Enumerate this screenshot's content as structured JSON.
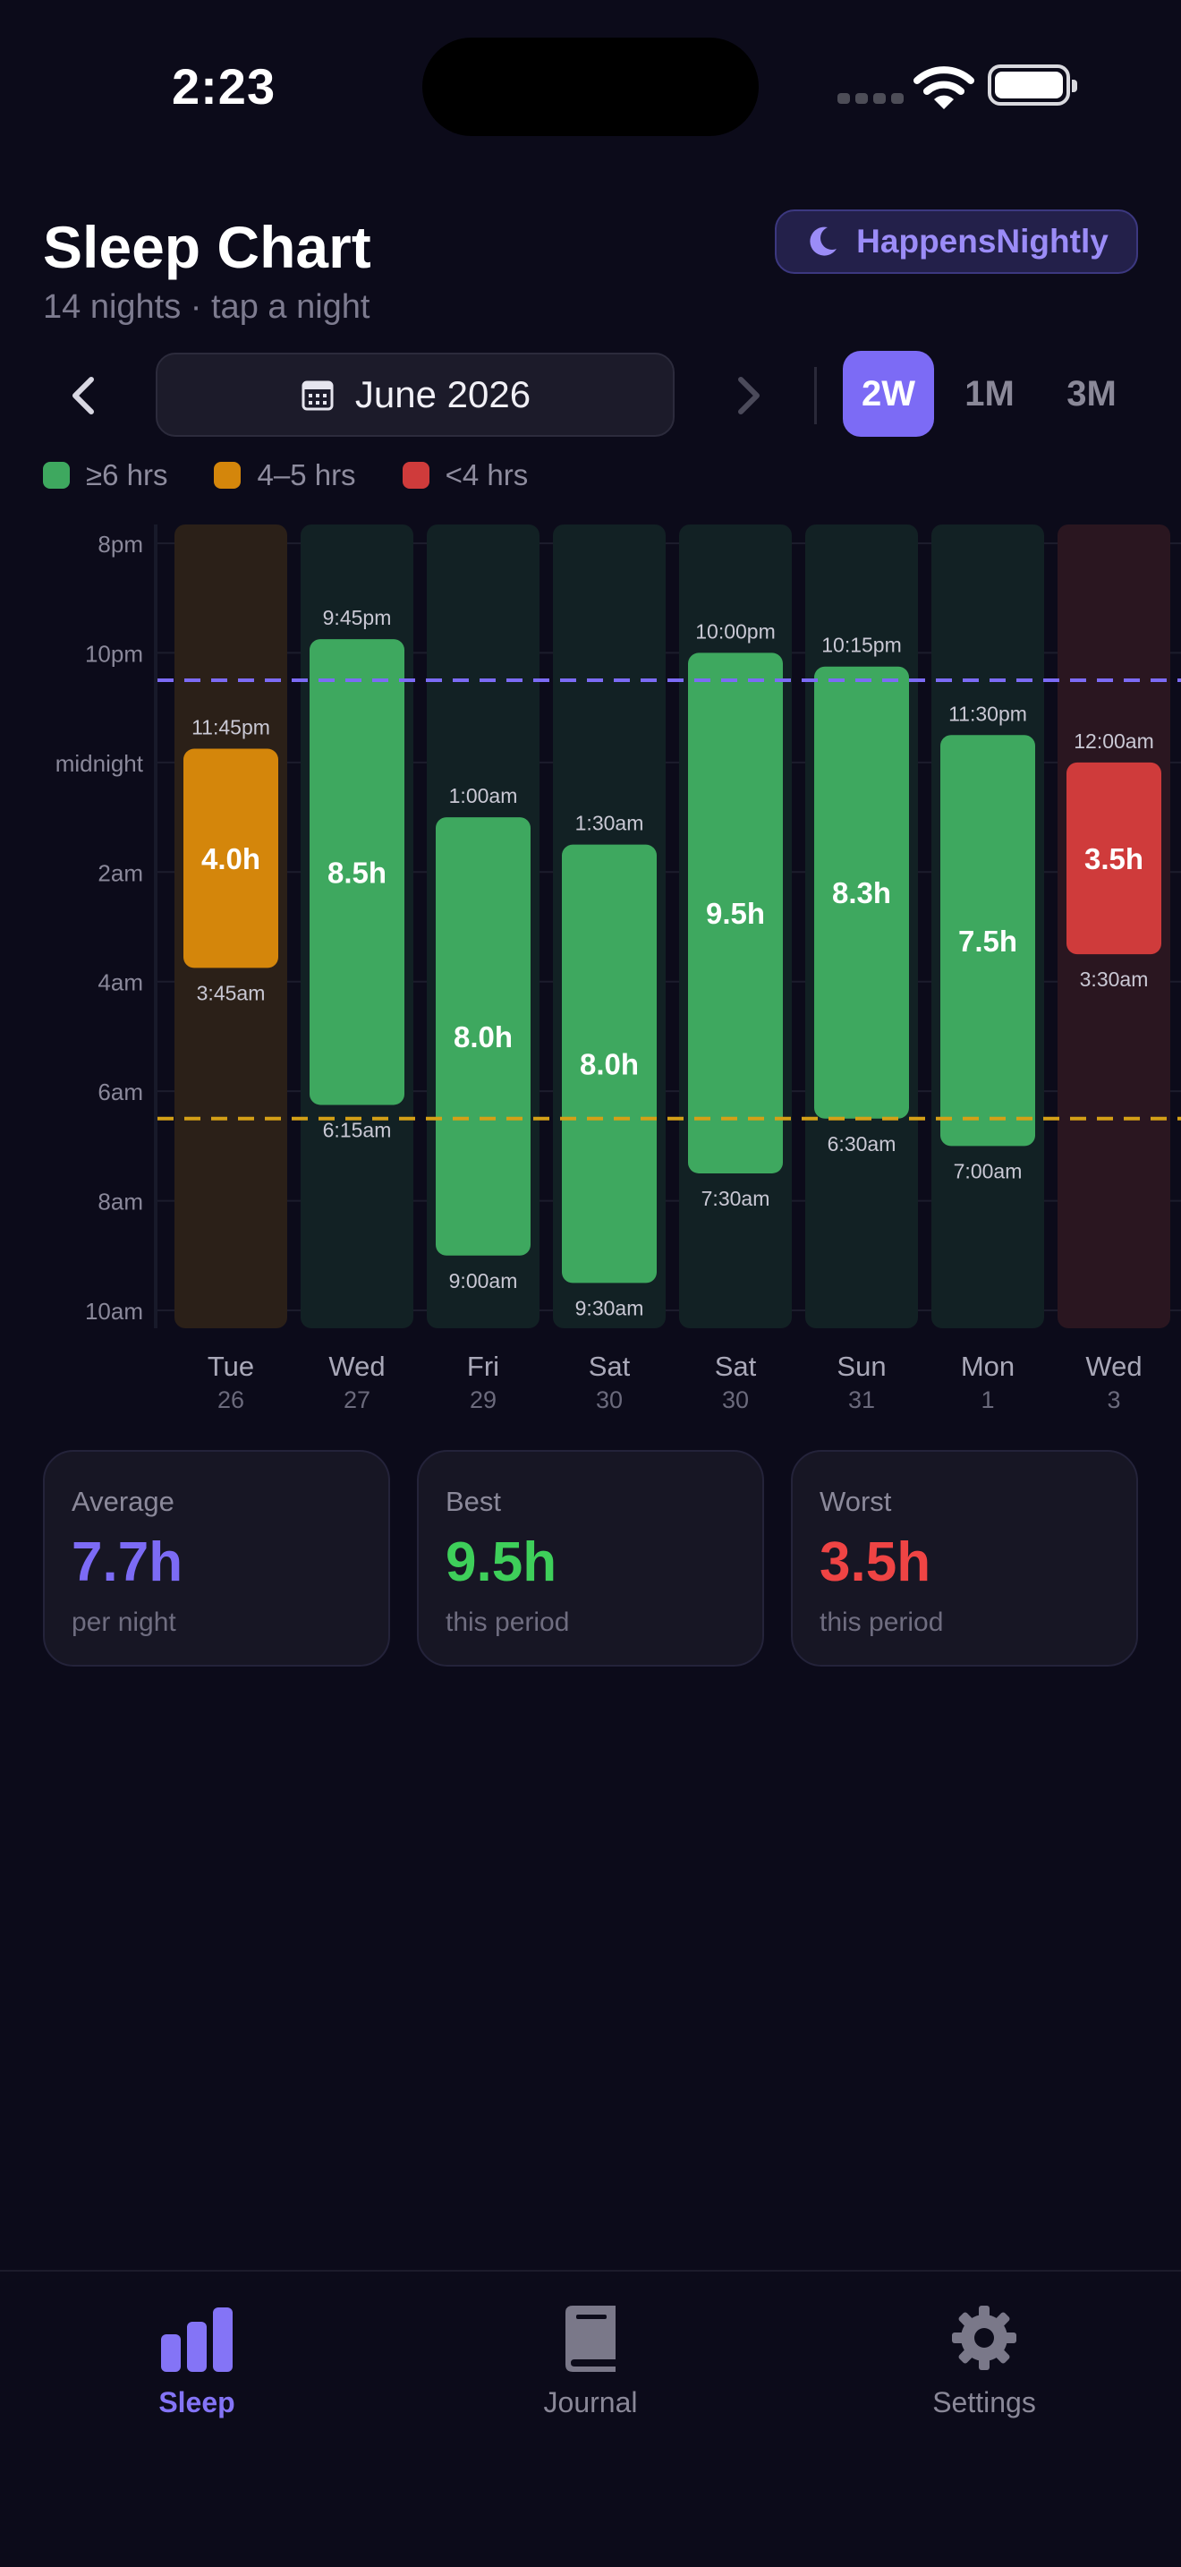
{
  "status_bar": {
    "time": "2:23"
  },
  "header": {
    "title": "Sleep Chart",
    "subtitle": "14 nights · tap a night",
    "brand": "HappensNightly"
  },
  "nav": {
    "month": "June 2026",
    "ranges": [
      {
        "label": "2W",
        "active": true
      },
      {
        "label": "1M",
        "active": false
      },
      {
        "label": "3M",
        "active": false
      }
    ]
  },
  "legend": [
    {
      "label": "≥6 hrs",
      "color": "#3ea85f"
    },
    {
      "label": "4–5 hrs",
      "color": "#d4860b"
    },
    {
      "label": "<4 hrs",
      "color": "#cf3b3b"
    }
  ],
  "chart_data": {
    "type": "bar",
    "orientation": "vertical-range",
    "y_axis_ticks": [
      "8pm",
      "10pm",
      "midnight",
      "2am",
      "4am",
      "6am",
      "8am",
      "10am"
    ],
    "y_range_hours": [
      20,
      34
    ],
    "reference_lines": [
      {
        "at_hours": 22.5,
        "color": "#7c6bf5"
      },
      {
        "at_hours": 30.5,
        "color": "#d4a017"
      }
    ],
    "nights": [
      {
        "day": "Tue",
        "date": "26",
        "start": 23.75,
        "end": 27.75,
        "start_label": "11:45pm",
        "end_label": "3:45am",
        "value_label": "4.0h",
        "color": "#d4860b",
        "col_bg": "#2b2018"
      },
      {
        "day": "Wed",
        "date": "27",
        "start": 21.75,
        "end": 30.25,
        "start_label": "9:45pm",
        "end_label": "6:15am",
        "value_label": "8.5h",
        "color": "#3ea85f",
        "col_bg": "#122124"
      },
      {
        "day": "Fri",
        "date": "29",
        "start": 25.0,
        "end": 33.0,
        "start_label": "1:00am",
        "end_label": "9:00am",
        "value_label": "8.0h",
        "color": "#3ea85f",
        "col_bg": "#122124"
      },
      {
        "day": "Sat",
        "date": "30",
        "start": 25.5,
        "end": 33.5,
        "start_label": "1:30am",
        "end_label": "9:30am",
        "value_label": "8.0h",
        "color": "#3ea85f",
        "col_bg": "#122124"
      },
      {
        "day": "Sat",
        "date": "30",
        "start": 22.0,
        "end": 31.5,
        "start_label": "10:00pm",
        "end_label": "7:30am",
        "value_label": "9.5h",
        "color": "#3ea85f",
        "col_bg": "#122124"
      },
      {
        "day": "Sun",
        "date": "31",
        "start": 22.25,
        "end": 30.5,
        "start_label": "10:15pm",
        "end_label": "6:30am",
        "value_label": "8.3h",
        "color": "#3ea85f",
        "col_bg": "#122124"
      },
      {
        "day": "Mon",
        "date": "1",
        "start": 23.5,
        "end": 31.0,
        "start_label": "11:30pm",
        "end_label": "7:00am",
        "value_label": "7.5h",
        "color": "#3ea85f",
        "col_bg": "#122124"
      },
      {
        "day": "Wed",
        "date": "3",
        "start": 24.0,
        "end": 27.5,
        "start_label": "12:00am",
        "end_label": "3:30am",
        "value_label": "3.5h",
        "color": "#cf3b3b",
        "col_bg": "#2a1620"
      }
    ]
  },
  "stats": [
    {
      "label": "Average",
      "value": "7.7h",
      "sub": "per night",
      "color": "#7c6bf5"
    },
    {
      "label": "Best",
      "value": "9.5h",
      "sub": "this period",
      "color": "#3ecf5a"
    },
    {
      "label": "Worst",
      "value": "3.5h",
      "sub": "this period",
      "color": "#ef4444"
    }
  ],
  "tabs": [
    {
      "label": "Sleep",
      "icon": "bar-chart-icon",
      "active": true
    },
    {
      "label": "Journal",
      "icon": "book-icon",
      "active": false
    },
    {
      "label": "Settings",
      "icon": "gear-icon",
      "active": false
    }
  ]
}
